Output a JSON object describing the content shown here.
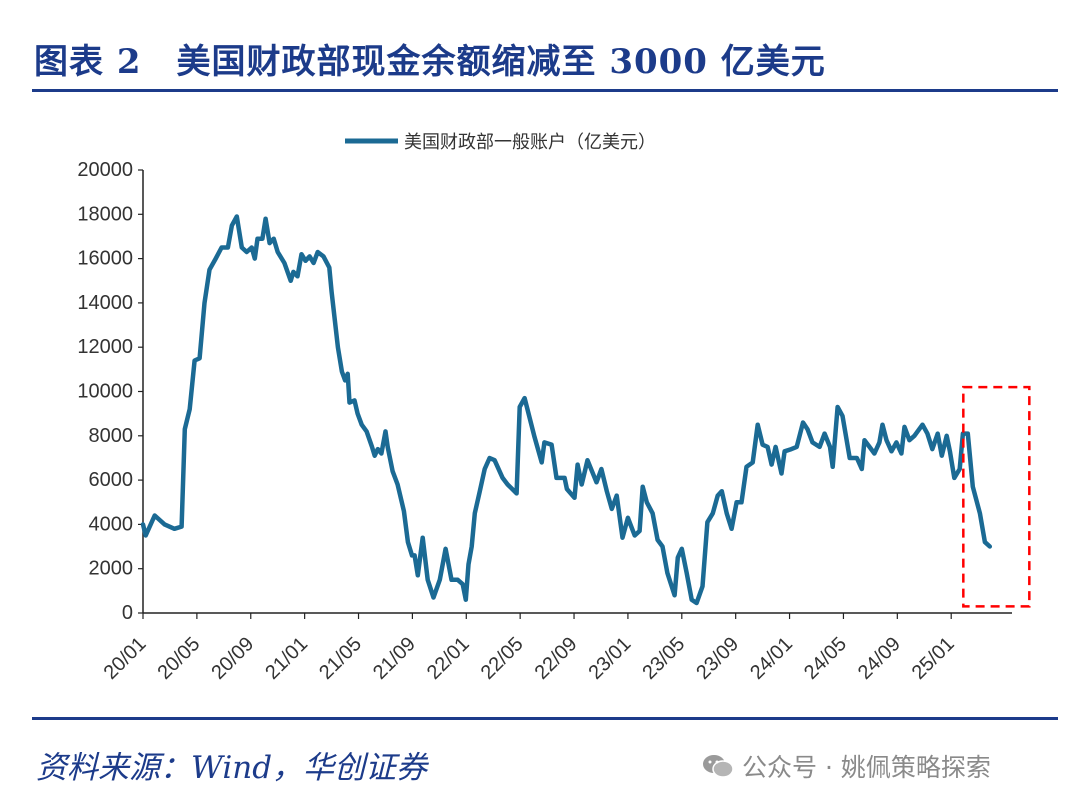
{
  "header": {
    "title": "图表 2　美国财政部现金余额缩减至 3000 亿美元"
  },
  "footer": {
    "source": "资料来源：Wind，华创证券",
    "watermark": "公众号 · 姚佩策略探索",
    "watermark_icon": "wechat-icon"
  },
  "colors": {
    "title": "#1c3b8a",
    "line": "#1b6a94",
    "highlight_box": "#ff0000"
  },
  "chart_data": {
    "type": "line",
    "title": "",
    "xlabel": "",
    "ylabel": "",
    "ylim": [
      0,
      20000
    ],
    "yticks": [
      "0",
      "2000",
      "4000",
      "6000",
      "8000",
      "10000",
      "12000",
      "14000",
      "16000",
      "18000",
      "20000"
    ],
    "xticks": [
      "20/01",
      "20/05",
      "20/09",
      "21/01",
      "21/05",
      "21/09",
      "22/01",
      "22/05",
      "22/09",
      "23/01",
      "23/05",
      "23/09",
      "24/01",
      "24/05",
      "24/09",
      "25/01"
    ],
    "grid": false,
    "legend_position": "top-center",
    "series": [
      {
        "name": "美国财政部一般账户（亿美元）",
        "x": [
          "2020-01-01",
          "2020-01-07",
          "2020-01-27",
          "2020-02-19",
          "2020-03-11",
          "2020-03-27",
          "2020-04-04",
          "2020-04-15",
          "2020-04-26",
          "2020-05-07",
          "2020-05-18",
          "2020-05-29",
          "2020-06-13",
          "2020-06-26",
          "2020-07-10",
          "2020-07-19",
          "2020-07-30",
          "2020-08-11",
          "2020-08-22",
          "2020-09-03",
          "2020-09-10",
          "2020-09-16",
          "2020-09-27",
          "2020-10-04",
          "2020-10-13",
          "2020-10-22",
          "2020-11-01",
          "2020-11-16",
          "2020-11-30",
          "2020-12-06",
          "2020-12-15",
          "2020-12-24",
          "2021-01-03",
          "2021-01-12",
          "2021-01-21",
          "2021-01-30",
          "2021-02-13",
          "2021-02-26",
          "2021-03-01",
          "2021-03-15",
          "2021-03-24",
          "2021-04-01",
          "2021-04-07",
          "2021-04-11",
          "2021-04-22",
          "2021-04-29",
          "2021-05-08",
          "2021-05-19",
          "2021-06-01",
          "2021-06-07",
          "2021-06-14",
          "2021-06-22",
          "2021-07-01",
          "2021-07-06",
          "2021-07-17",
          "2021-07-28",
          "2021-08-12",
          "2021-08-21",
          "2021-08-30",
          "2021-09-06",
          "2021-09-13",
          "2021-09-24",
          "2021-10-05",
          "2021-10-18",
          "2021-11-02",
          "2021-11-15",
          "2021-11-28",
          "2021-12-12",
          "2021-12-23",
          "2021-12-30",
          "2022-01-06",
          "2022-01-13",
          "2022-01-20",
          "2022-02-01",
          "2022-02-12",
          "2022-02-23",
          "2022-03-04",
          "2022-03-22",
          "2022-04-03",
          "2022-04-23",
          "2022-04-30",
          "2022-05-11",
          "2022-06-03",
          "2022-06-19",
          "2022-06-25",
          "2022-07-11",
          "2022-07-22",
          "2022-08-10",
          "2022-08-15",
          "2022-09-02",
          "2022-09-09",
          "2022-09-18",
          "2022-10-01",
          "2022-10-21",
          "2022-11-02",
          "2022-11-14",
          "2022-11-25",
          "2022-12-06",
          "2022-12-19",
          "2023-01-01",
          "2023-01-16",
          "2023-01-27",
          "2023-02-04",
          "2023-02-13",
          "2023-02-26",
          "2023-03-07",
          "2023-03-18",
          "2023-03-29",
          "2023-04-15",
          "2023-04-22",
          "2023-05-01",
          "2023-05-12",
          "2023-05-23",
          "2023-06-04",
          "2023-06-17",
          "2023-06-28",
          "2023-07-10",
          "2023-07-21",
          "2023-07-30",
          "2023-08-11",
          "2023-08-22",
          "2023-09-03",
          "2023-09-14",
          "2023-09-25",
          "2023-10-09",
          "2023-10-20",
          "2023-11-01",
          "2023-11-12",
          "2023-11-21",
          "2023-11-30",
          "2023-12-13",
          "2023-12-20",
          "2024-01-05",
          "2024-01-17",
          "2024-02-01",
          "2024-02-11",
          "2024-02-22",
          "2024-03-08",
          "2024-03-19",
          "2024-04-01",
          "2024-04-07",
          "2024-04-18",
          "2024-04-29",
          "2024-05-15",
          "2024-06-01",
          "2024-06-12",
          "2024-06-18",
          "2024-06-29",
          "2024-07-10",
          "2024-07-21",
          "2024-07-28",
          "2024-08-07",
          "2024-08-18",
          "2024-08-29",
          "2024-09-10",
          "2024-09-17",
          "2024-09-28",
          "2024-10-09",
          "2024-10-27",
          "2024-11-08",
          "2024-11-19",
          "2024-12-01",
          "2024-12-10",
          "2024-12-21",
          "2024-12-28",
          "2025-01-08",
          "2025-01-20",
          "2025-01-27",
          "2025-02-08",
          "2025-02-19",
          "2025-03-05",
          "2025-03-16",
          "2025-03-27"
        ],
        "values": [
          4000,
          3500,
          4400,
          4000,
          3800,
          3900,
          8300,
          9200,
          11400,
          11500,
          14000,
          15500,
          16000,
          16500,
          16500,
          17500,
          17900,
          16500,
          16300,
          16500,
          16000,
          16900,
          16900,
          17800,
          16700,
          16900,
          16300,
          15800,
          15000,
          15400,
          15200,
          16200,
          15900,
          16100,
          15800,
          16300,
          16100,
          15600,
          14500,
          12000,
          10900,
          10500,
          10800,
          9500,
          9600,
          9000,
          8500,
          8200,
          7500,
          7100,
          7400,
          7200,
          8200,
          7500,
          6400,
          5800,
          4600,
          3200,
          2600,
          2600,
          1700,
          3400,
          1500,
          700,
          1500,
          2900,
          1500,
          1500,
          1300,
          600,
          2200,
          3000,
          4500,
          5500,
          6500,
          7000,
          6900,
          6100,
          5800,
          5400,
          9300,
          9700,
          7950,
          6800,
          7700,
          7600,
          6100,
          6100,
          5600,
          5200,
          6700,
          5800,
          6900,
          5900,
          6500,
          5500,
          4700,
          5300,
          3400,
          4300,
          3500,
          3700,
          5700,
          5000,
          4500,
          3300,
          3000,
          1800,
          800,
          2500,
          2900,
          1800,
          600,
          450,
          1200,
          4100,
          4500,
          5300,
          5500,
          4500,
          3800,
          5000,
          5000,
          6600,
          6800,
          8500,
          7600,
          7500,
          6700,
          7500,
          6300,
          7300,
          7400,
          7500,
          8600,
          8300,
          7700,
          7500,
          8100,
          7500,
          6600,
          9300,
          8900,
          7000,
          7000,
          6500,
          7800,
          7500,
          7200,
          7700,
          8500,
          7800,
          7300,
          7700,
          7200,
          8400,
          7800,
          8000,
          8500,
          8100,
          7400,
          8100,
          7100,
          8000,
          7300,
          6100,
          6500,
          8100,
          8100,
          5700,
          4500,
          3200,
          3000
        ]
      }
    ],
    "annotations": [
      {
        "type": "dashed-box",
        "x_range": [
          "2025-01-28",
          "2025-06-25"
        ],
        "y_range": [
          300,
          10200
        ]
      }
    ]
  }
}
